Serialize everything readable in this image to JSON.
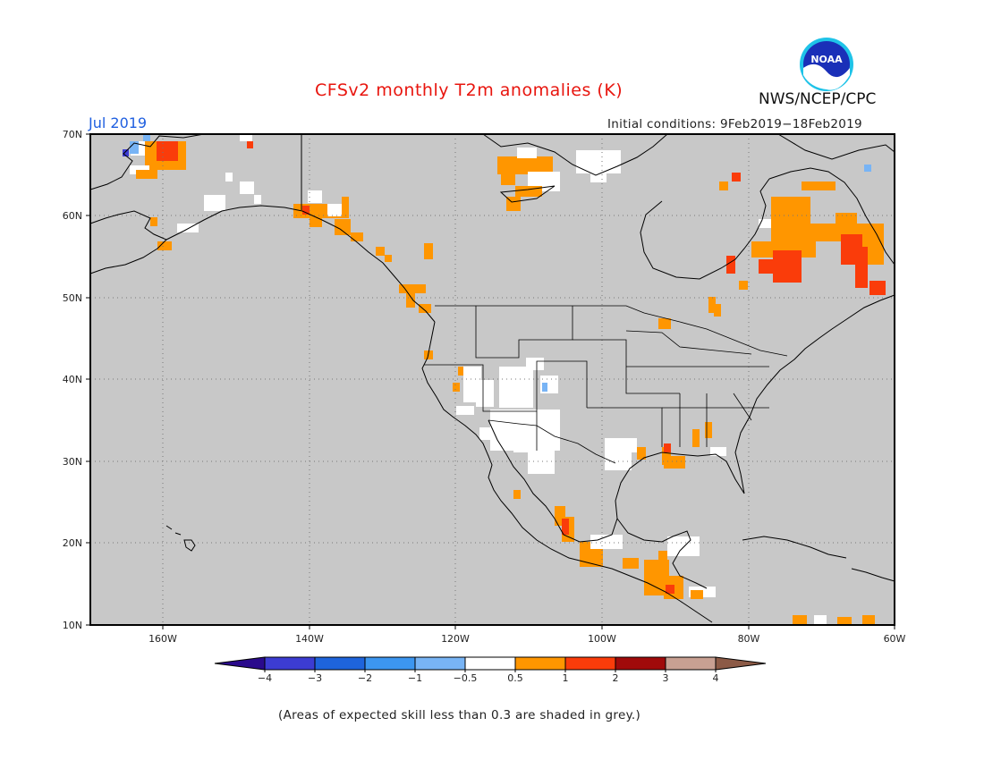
{
  "title": "CFSv2 monthly T2m anomalies (K)",
  "month": "Jul 2019",
  "initial_conditions": "Initial conditions: 9Feb2019−18Feb2019",
  "agency": "NWS/NCEP/CPC",
  "logo_text": "NOAA",
  "footnote": "(Areas of expected skill less than 0.3 are shaded in grey.)",
  "lat_labels": [
    "70N",
    "60N",
    "50N",
    "40N",
    "30N",
    "20N",
    "10N"
  ],
  "lon_labels": [
    "160W",
    "140W",
    "120W",
    "100W",
    "80W",
    "60W"
  ],
  "colorbar": {
    "labels": [
      "−4",
      "−3",
      "−2",
      "−1",
      "−0.5",
      "0.5",
      "1",
      "2",
      "3",
      "4"
    ],
    "colors": [
      "#2a0a8c",
      "#3c3cd2",
      "#1e64dc",
      "#3c96f0",
      "#78b4f5",
      "#ffffff",
      "#ff9600",
      "#fa3c0a",
      "#a00a0a",
      "#c8a092",
      "#8c5a46"
    ]
  },
  "colors": {
    "grey_mask": "#c8c8c8",
    "title": "#e8150e",
    "month": "#1f5fe0"
  }
}
